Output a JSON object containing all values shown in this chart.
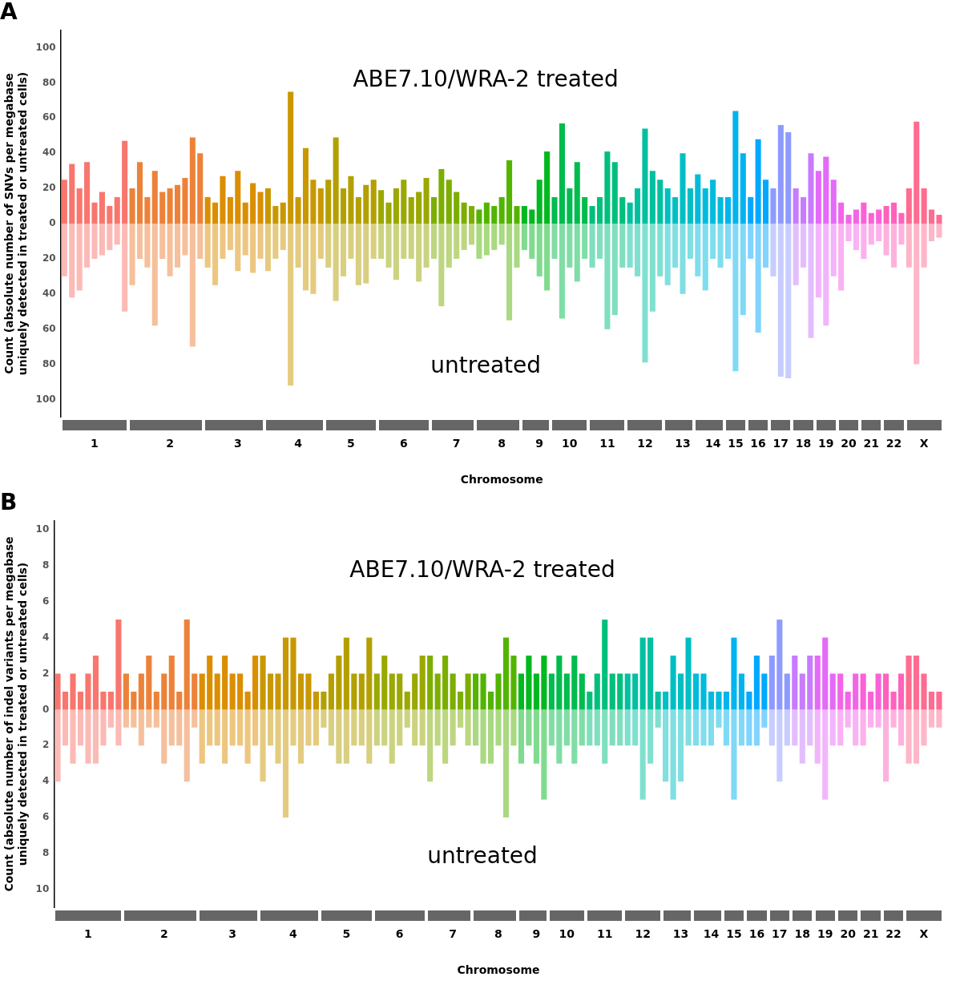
{
  "chart_data": [
    {
      "type": "bar",
      "title": "A",
      "xlabel": "Chromosome",
      "ylabel": "Count (absolute number of SNVs per megabase uniquely detected in treated or untreated cells)",
      "annotations": [
        "ABE7.10/WRA-2 treated",
        "untreated"
      ],
      "grid": false,
      "legend": false,
      "stacked": true,
      "categories": [
        null,
        null,
        null,
        null,
        "1",
        null,
        null,
        null,
        null,
        null,
        null,
        null,
        null,
        null,
        "2",
        null,
        null,
        null,
        null,
        null,
        null,
        null,
        null,
        "3",
        null,
        null,
        null,
        null,
        null,
        null,
        null,
        "4",
        null,
        null,
        null,
        null,
        null,
        null,
        "5",
        null,
        null,
        null,
        null,
        null,
        null,
        "6",
        null,
        null,
        null,
        null,
        null,
        null,
        "7",
        null,
        null,
        null,
        null,
        null,
        "8",
        null,
        null,
        null,
        null,
        "9",
        null,
        null,
        null,
        "10",
        null,
        null,
        null,
        null,
        "11",
        null,
        null,
        null,
        null,
        "12",
        null,
        null,
        null,
        null,
        "13",
        null,
        null,
        null,
        "14",
        null,
        null,
        "15",
        null,
        null,
        "16",
        null,
        null,
        "17",
        null,
        null,
        "18",
        null,
        null,
        "19",
        null,
        null,
        "20",
        null,
        null,
        "21",
        null,
        null,
        "22",
        null,
        null,
        null,
        "X",
        null,
        null
      ],
      "ylim": [
        -110,
        110
      ],
      "yticks": [
        {
          "value": -100,
          "label": "100"
        },
        {
          "value": -80,
          "label": "80"
        },
        {
          "value": -60,
          "label": "60"
        },
        {
          "value": -40,
          "label": "40"
        },
        {
          "value": -20,
          "label": "20"
        },
        0,
        20,
        40,
        60,
        80,
        100
      ],
      "series": [
        {
          "values": [
            25,
            34,
            20,
            35,
            12,
            18,
            10,
            15,
            47,
            20,
            35,
            15,
            30,
            18,
            20,
            22,
            26,
            49,
            40,
            15,
            12,
            27,
            15,
            30,
            12,
            23,
            18,
            20,
            10,
            12,
            75,
            15,
            43,
            25,
            20,
            25,
            49,
            20,
            27,
            15,
            22,
            25,
            19,
            12,
            20,
            25,
            15,
            18,
            26,
            15,
            31,
            25,
            18,
            12,
            10,
            8,
            12,
            10,
            15,
            36,
            10,
            10,
            8,
            25,
            41,
            15,
            57,
            20,
            35,
            15,
            10,
            15,
            41,
            35,
            15,
            12,
            20,
            54,
            30,
            25,
            20,
            15,
            40,
            20,
            28,
            20,
            25,
            15,
            15,
            64,
            40,
            15,
            48,
            25,
            20,
            56,
            52,
            20,
            15,
            40,
            30,
            38,
            25,
            12,
            5,
            8,
            12,
            6,
            8,
            10,
            12,
            6,
            20,
            58,
            20,
            8,
            5
          ],
          "colors": [
            "#f8766d",
            "#f8766d",
            "#f8766d",
            "#f8766d",
            "#f8766d",
            "#f8766d",
            "#f8766d",
            "#f8766d",
            "#f8766d",
            "#ec8239",
            "#ec8239",
            "#ec8239",
            "#ec8239",
            "#ec8239",
            "#ec8239",
            "#ec8239",
            "#ec8239",
            "#ec8239",
            "#ec8239",
            "#db8e00",
            "#db8e00",
            "#db8e00",
            "#db8e00",
            "#db8e00",
            "#db8e00",
            "#db8e00",
            "#db8e00",
            "#c99800",
            "#c99800",
            "#c99800",
            "#c99800",
            "#c99800",
            "#c99800",
            "#c99800",
            "#c99800",
            "#b3a000",
            "#b3a000",
            "#b3a000",
            "#b3a000",
            "#b3a000",
            "#b3a000",
            "#b3a000",
            "#9aa800",
            "#9aa800",
            "#9aa800",
            "#9aa800",
            "#9aa800",
            "#9aa800",
            "#9aa800",
            "#7cae00",
            "#7cae00",
            "#7cae00",
            "#7cae00",
            "#7cae00",
            "#7cae00",
            "#53b400",
            "#53b400",
            "#53b400",
            "#53b400",
            "#53b400",
            "#53b400",
            "#00b81f",
            "#00b81f",
            "#00b81f",
            "#00b81f",
            "#00bb4e",
            "#00bb4e",
            "#00bb4e",
            "#00bb4e",
            "#00bb4e",
            "#00bf7d",
            "#00bf7d",
            "#00bf7d",
            "#00bf7d",
            "#00bf7d",
            "#00c0a0",
            "#00c0a0",
            "#00c0a0",
            "#00c0a0",
            "#00c0a0",
            "#00bfc4",
            "#00bfc4",
            "#00bfc4",
            "#00bfc4",
            "#00bbdb",
            "#00bbdb",
            "#00bbdb",
            "#00bbdb",
            "#00b4ef",
            "#00b4ef",
            "#00b4ef",
            "#00a9ff",
            "#00a9ff",
            "#00a9ff",
            "#8f9aff",
            "#8f9aff",
            "#8f9aff",
            "#c77cff",
            "#c77cff",
            "#c77cff",
            "#e46af8",
            "#e46af8",
            "#e46af8",
            "#f265e7",
            "#f265e7",
            "#f265e7",
            "#fb61d7",
            "#fb61d7",
            "#fb61d7",
            "#ff62bc",
            "#ff62bc",
            "#ff62bc",
            "#ff6c91",
            "#ff6c91",
            "#ff6c91",
            "#ff6c91",
            "#ff6c91"
          ]
        },
        {
          "values": [
            -30,
            -42,
            -38,
            -25,
            -20,
            -18,
            -15,
            -12,
            -50,
            -35,
            -20,
            -25,
            -58,
            -20,
            -30,
            -25,
            -18,
            -70,
            -20,
            -25,
            -35,
            -20,
            -15,
            -27,
            -18,
            -28,
            -20,
            -27,
            -20,
            -15,
            -92,
            -25,
            -38,
            -40,
            -20,
            -25,
            -44,
            -30,
            -20,
            -35,
            -34,
            -20,
            -20,
            -25,
            -32,
            -20,
            -20,
            -33,
            -25,
            -20,
            -47,
            -25,
            -20,
            -15,
            -12,
            -20,
            -18,
            -15,
            -12,
            -55,
            -25,
            -15,
            -20,
            -30,
            -38,
            -20,
            -54,
            -25,
            -33,
            -20,
            -25,
            -20,
            -60,
            -52,
            -25,
            -25,
            -30,
            -79,
            -50,
            -30,
            -35,
            -25,
            -40,
            -20,
            -30,
            -38,
            -20,
            -25,
            -20,
            -84,
            -52,
            -20,
            -62,
            -25,
            -30,
            -87,
            -88,
            -35,
            -25,
            -65,
            -42,
            -58,
            -30,
            -38,
            -10,
            -15,
            -20,
            -12,
            -10,
            -18,
            -25,
            -12,
            -25,
            -80,
            -25,
            -10,
            -8
          ],
          "colors": [
            "#fcbab6",
            "#fcbab6",
            "#fcbab6",
            "#fcbab6",
            "#fcbab6",
            "#fcbab6",
            "#fcbab6",
            "#fcbab6",
            "#fcbab6",
            "#f5c09c",
            "#f5c09c",
            "#f5c09c",
            "#f5c09c",
            "#f5c09c",
            "#f5c09c",
            "#f5c09c",
            "#f5c09c",
            "#f5c09c",
            "#f5c09c",
            "#edc680",
            "#edc680",
            "#edc680",
            "#edc680",
            "#edc680",
            "#edc680",
            "#edc680",
            "#edc680",
            "#e4cb80",
            "#e4cb80",
            "#e4cb80",
            "#e4cb80",
            "#e4cb80",
            "#e4cb80",
            "#e4cb80",
            "#e4cb80",
            "#d9cf80",
            "#d9cf80",
            "#d9cf80",
            "#d9cf80",
            "#d9cf80",
            "#d9cf80",
            "#d9cf80",
            "#ccd380",
            "#ccd380",
            "#ccd380",
            "#ccd380",
            "#ccd380",
            "#ccd380",
            "#ccd380",
            "#bdd680",
            "#bdd680",
            "#bdd680",
            "#bdd680",
            "#bdd680",
            "#bdd680",
            "#a9d980",
            "#a9d980",
            "#a9d980",
            "#a9d980",
            "#a9d980",
            "#a9d980",
            "#80db8f",
            "#80db8f",
            "#80db8f",
            "#80db8f",
            "#80dda6",
            "#80dda6",
            "#80dda6",
            "#80dda6",
            "#80dda6",
            "#80dfbe",
            "#80dfbe",
            "#80dfbe",
            "#80dfbe",
            "#80dfbe",
            "#80e0d0",
            "#80e0d0",
            "#80e0d0",
            "#80e0d0",
            "#80e0d0",
            "#80dfe1",
            "#80dfe1",
            "#80dfe1",
            "#80dfe1",
            "#80dded",
            "#80dded",
            "#80dded",
            "#80dded",
            "#80d9f7",
            "#80d9f7",
            "#80d9f7",
            "#80d4ff",
            "#80d4ff",
            "#80d4ff",
            "#c7cdff",
            "#c7cdff",
            "#c7cdff",
            "#e3beff",
            "#e3beff",
            "#e3beff",
            "#f2b5fc",
            "#f2b5fc",
            "#f2b5fc",
            "#f9b2f3",
            "#f9b2f3",
            "#f9b2f3",
            "#fdb0eb",
            "#fdb0eb",
            "#fdb0eb",
            "#ffb1de",
            "#ffb1de",
            "#ffb1de",
            "#ffb6c8",
            "#ffb6c8",
            "#ffb6c8",
            "#ffb6c8",
            "#ffb6c8"
          ]
        }
      ]
    },
    {
      "type": "bar",
      "title": "B",
      "xlabel": "Chromosome",
      "ylabel": "Count (absolute number of indel variants per megabase uniquely detected in treated or untreated cells)",
      "annotations": [
        "ABE7.10/WRA-2 treated",
        "untreated"
      ],
      "grid": false,
      "legend": false,
      "stacked": true,
      "categories": [
        null,
        null,
        null,
        null,
        "1",
        null,
        null,
        null,
        null,
        null,
        null,
        null,
        null,
        null,
        "2",
        null,
        null,
        null,
        null,
        null,
        null,
        null,
        null,
        "3",
        null,
        null,
        null,
        null,
        null,
        null,
        null,
        "4",
        null,
        null,
        null,
        null,
        null,
        null,
        "5",
        null,
        null,
        null,
        null,
        null,
        null,
        "6",
        null,
        null,
        null,
        null,
        null,
        null,
        "7",
        null,
        null,
        null,
        null,
        null,
        "8",
        null,
        null,
        null,
        null,
        "9",
        null,
        null,
        null,
        "10",
        null,
        null,
        null,
        null,
        "11",
        null,
        null,
        null,
        null,
        "12",
        null,
        null,
        null,
        null,
        "13",
        null,
        null,
        null,
        "14",
        null,
        null,
        "15",
        null,
        null,
        "16",
        null,
        null,
        "17",
        null,
        null,
        "18",
        null,
        null,
        "19",
        null,
        null,
        "20",
        null,
        null,
        "21",
        null,
        null,
        "22",
        null,
        null,
        null,
        "X",
        null,
        null
      ],
      "ylim": [
        -11,
        10.5
      ],
      "yticks": [
        {
          "value": -10,
          "label": "10"
        },
        {
          "value": -8,
          "label": "8"
        },
        {
          "value": -6,
          "label": "6"
        },
        {
          "value": -4,
          "label": "4"
        },
        {
          "value": -2,
          "label": "2"
        },
        0,
        2,
        4,
        6,
        8,
        10
      ],
      "series": [
        {
          "values": [
            2,
            1,
            2,
            1,
            2,
            3,
            1,
            1,
            5,
            2,
            1,
            2,
            3,
            1,
            2,
            3,
            1,
            5,
            2,
            2,
            3,
            2,
            3,
            2,
            2,
            1,
            3,
            3,
            2,
            2,
            4,
            4,
            2,
            2,
            1,
            1,
            2,
            3,
            4,
            2,
            2,
            4,
            2,
            3,
            2,
            2,
            1,
            2,
            3,
            3,
            2,
            3,
            2,
            1,
            2,
            2,
            2,
            1,
            2,
            4,
            3,
            2,
            3,
            2,
            3,
            2,
            3,
            2,
            3,
            2,
            1,
            2,
            5,
            2,
            2,
            2,
            2,
            4,
            4,
            1,
            1,
            3,
            2,
            4,
            2,
            2,
            1,
            1,
            1,
            4,
            2,
            1,
            3,
            2,
            3,
            5,
            2,
            3,
            2,
            3,
            3,
            4,
            2,
            2,
            1,
            2,
            2,
            1,
            2,
            2,
            1,
            2,
            3,
            3,
            2,
            1,
            1
          ],
          "colors": [
            "#f8766d",
            "#f8766d",
            "#f8766d",
            "#f8766d",
            "#f8766d",
            "#f8766d",
            "#f8766d",
            "#f8766d",
            "#f8766d",
            "#ec8239",
            "#ec8239",
            "#ec8239",
            "#ec8239",
            "#ec8239",
            "#ec8239",
            "#ec8239",
            "#ec8239",
            "#ec8239",
            "#ec8239",
            "#db8e00",
            "#db8e00",
            "#db8e00",
            "#db8e00",
            "#db8e00",
            "#db8e00",
            "#db8e00",
            "#db8e00",
            "#c99800",
            "#c99800",
            "#c99800",
            "#c99800",
            "#c99800",
            "#c99800",
            "#c99800",
            "#c99800",
            "#b3a000",
            "#b3a000",
            "#b3a000",
            "#b3a000",
            "#b3a000",
            "#b3a000",
            "#b3a000",
            "#9aa800",
            "#9aa800",
            "#9aa800",
            "#9aa800",
            "#9aa800",
            "#9aa800",
            "#9aa800",
            "#7cae00",
            "#7cae00",
            "#7cae00",
            "#7cae00",
            "#7cae00",
            "#7cae00",
            "#53b400",
            "#53b400",
            "#53b400",
            "#53b400",
            "#53b400",
            "#53b400",
            "#00b81f",
            "#00b81f",
            "#00b81f",
            "#00b81f",
            "#00bb4e",
            "#00bb4e",
            "#00bb4e",
            "#00bb4e",
            "#00bb4e",
            "#00bf7d",
            "#00bf7d",
            "#00bf7d",
            "#00bf7d",
            "#00bf7d",
            "#00c0a0",
            "#00c0a0",
            "#00c0a0",
            "#00c0a0",
            "#00c0a0",
            "#00bfc4",
            "#00bfc4",
            "#00bfc4",
            "#00bfc4",
            "#00bbdb",
            "#00bbdb",
            "#00bbdb",
            "#00bbdb",
            "#00b4ef",
            "#00b4ef",
            "#00b4ef",
            "#00a9ff",
            "#00a9ff",
            "#00a9ff",
            "#8f9aff",
            "#8f9aff",
            "#8f9aff",
            "#c77cff",
            "#c77cff",
            "#c77cff",
            "#e46af8",
            "#e46af8",
            "#e46af8",
            "#f265e7",
            "#f265e7",
            "#f265e7",
            "#fb61d7",
            "#fb61d7",
            "#fb61d7",
            "#ff62bc",
            "#ff62bc",
            "#ff62bc",
            "#ff6c91",
            "#ff6c91",
            "#ff6c91",
            "#ff6c91",
            "#ff6c91"
          ]
        },
        {
          "values": [
            -4,
            -2,
            -3,
            -2,
            -3,
            -3,
            -2,
            -1,
            -2,
            -1,
            -1,
            -2,
            -1,
            -1,
            -3,
            -2,
            -2,
            -4,
            -1,
            -3,
            -2,
            -2,
            -3,
            -2,
            -2,
            -3,
            -2,
            -4,
            -2,
            -3,
            -6,
            -2,
            -3,
            -2,
            -2,
            -1,
            -2,
            -3,
            -3,
            -2,
            -2,
            -3,
            -2,
            -2,
            -3,
            -2,
            -1,
            -2,
            -2,
            -4,
            -2,
            -3,
            -2,
            -1,
            -2,
            -2,
            -3,
            -3,
            -2,
            -6,
            -2,
            -3,
            -2,
            -3,
            -5,
            -2,
            -3,
            -2,
            -3,
            -2,
            -2,
            -2,
            -3,
            -2,
            -2,
            -2,
            -2,
            -5,
            -3,
            -1,
            -4,
            -5,
            -4,
            -2,
            -2,
            -2,
            -2,
            -1,
            -2,
            -5,
            -2,
            -2,
            -2,
            -1,
            -2,
            -4,
            -2,
            -2,
            -3,
            -2,
            -3,
            -5,
            -2,
            -2,
            -1,
            -2,
            -2,
            -1,
            -1,
            -4,
            -1,
            -2,
            -3,
            -3,
            -2,
            -1,
            -1
          ],
          "colors": [
            "#fcbab6",
            "#fcbab6",
            "#fcbab6",
            "#fcbab6",
            "#fcbab6",
            "#fcbab6",
            "#fcbab6",
            "#fcbab6",
            "#fcbab6",
            "#f5c09c",
            "#f5c09c",
            "#f5c09c",
            "#f5c09c",
            "#f5c09c",
            "#f5c09c",
            "#f5c09c",
            "#f5c09c",
            "#f5c09c",
            "#f5c09c",
            "#edc680",
            "#edc680",
            "#edc680",
            "#edc680",
            "#edc680",
            "#edc680",
            "#edc680",
            "#edc680",
            "#e4cb80",
            "#e4cb80",
            "#e4cb80",
            "#e4cb80",
            "#e4cb80",
            "#e4cb80",
            "#e4cb80",
            "#e4cb80",
            "#d9cf80",
            "#d9cf80",
            "#d9cf80",
            "#d9cf80",
            "#d9cf80",
            "#d9cf80",
            "#d9cf80",
            "#ccd380",
            "#ccd380",
            "#ccd380",
            "#ccd380",
            "#ccd380",
            "#ccd380",
            "#ccd380",
            "#bdd680",
            "#bdd680",
            "#bdd680",
            "#bdd680",
            "#bdd680",
            "#bdd680",
            "#a9d980",
            "#a9d980",
            "#a9d980",
            "#a9d980",
            "#a9d980",
            "#a9d980",
            "#80db8f",
            "#80db8f",
            "#80db8f",
            "#80db8f",
            "#80dda6",
            "#80dda6",
            "#80dda6",
            "#80dda6",
            "#80dda6",
            "#80dfbe",
            "#80dfbe",
            "#80dfbe",
            "#80dfbe",
            "#80dfbe",
            "#80e0d0",
            "#80e0d0",
            "#80e0d0",
            "#80e0d0",
            "#80e0d0",
            "#80dfe1",
            "#80dfe1",
            "#80dfe1",
            "#80dfe1",
            "#80dded",
            "#80dded",
            "#80dded",
            "#80dded",
            "#80d9f7",
            "#80d9f7",
            "#80d9f7",
            "#80d4ff",
            "#80d4ff",
            "#80d4ff",
            "#c7cdff",
            "#c7cdff",
            "#c7cdff",
            "#e3beff",
            "#e3beff",
            "#e3beff",
            "#f2b5fc",
            "#f2b5fc",
            "#f2b5fc",
            "#f9b2f3",
            "#f9b2f3",
            "#f9b2f3",
            "#fdb0eb",
            "#fdb0eb",
            "#fdb0eb",
            "#ffb1de",
            "#ffb1de",
            "#ffb1de",
            "#ffb6c8",
            "#ffb6c8",
            "#ffb6c8",
            "#ffb6c8",
            "#ffb6c8"
          ]
        }
      ]
    }
  ]
}
